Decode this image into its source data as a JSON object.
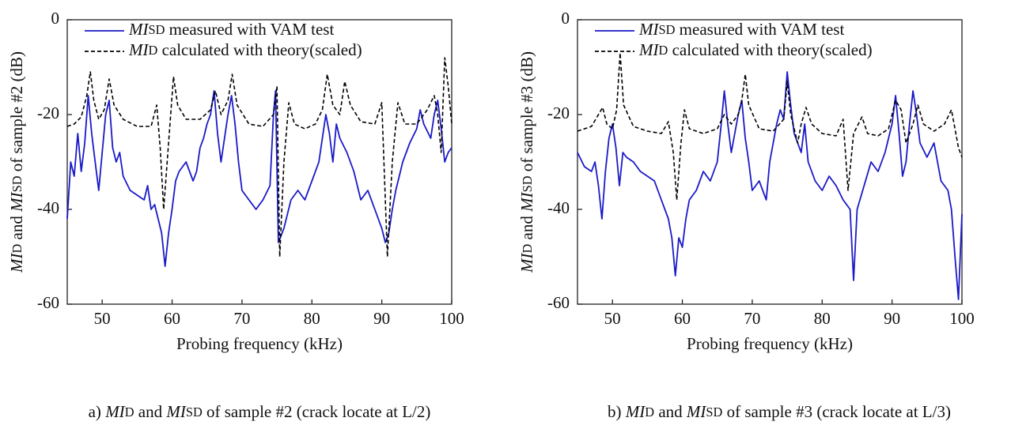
{
  "chart_data": [
    {
      "type": "line",
      "xlabel": "Probing frequency (kHz)",
      "ylabel": "MID and MISD of sample #2 (dB)",
      "caption": "a) MID and MISD of sample #2 (crack locate at L/2)",
      "xlim": [
        45,
        100
      ],
      "xticks": [
        50,
        60,
        70,
        80,
        90,
        100
      ],
      "ylim": [
        -60,
        0
      ],
      "yticks": [
        0,
        -20,
        -40,
        -60
      ],
      "legend": "upper left",
      "series": [
        {
          "name": "MISD measured with VAM test",
          "color": "#1a1ac8",
          "style": "solid",
          "x": [
            45,
            45.5,
            46,
            46.5,
            47,
            47.5,
            48,
            48.5,
            49,
            49.5,
            50,
            50.5,
            51,
            51.5,
            52,
            52.5,
            53,
            54,
            55,
            56,
            56.5,
            57,
            57.5,
            58,
            58.5,
            59,
            59.5,
            60,
            60.5,
            61,
            62,
            63,
            63.5,
            64,
            64.5,
            65,
            65.5,
            66,
            66.5,
            67,
            67.5,
            68,
            68.5,
            69,
            69.5,
            70,
            71,
            72,
            73,
            74,
            74.5,
            74.8,
            75.2,
            76,
            77,
            78,
            79,
            80,
            81,
            82,
            82.5,
            83,
            83.5,
            84,
            85,
            86,
            87,
            88,
            89,
            90,
            90.5,
            91,
            91.5,
            92,
            93,
            94,
            95,
            95.5,
            96,
            97,
            97.5,
            98,
            98.5,
            99,
            99.5,
            100
          ],
          "values": [
            -42,
            -30,
            -33,
            -24,
            -32,
            -26,
            -16,
            -24,
            -30,
            -36,
            -28,
            -20,
            -17,
            -27,
            -30,
            -28,
            -33,
            -36,
            -37,
            -38,
            -35,
            -40,
            -39,
            -42,
            -45,
            -52,
            -45,
            -40,
            -34,
            -32,
            -30,
            -34,
            -32,
            -27,
            -25,
            -22,
            -20,
            -15,
            -24,
            -30,
            -25,
            -20,
            -16,
            -22,
            -30,
            -36,
            -38,
            -40,
            -38,
            -35,
            -20,
            -15,
            -47,
            -44,
            -38,
            -36,
            -38,
            -34,
            -30,
            -20,
            -24,
            -30,
            -22,
            -25,
            -28,
            -32,
            -38,
            -36,
            -40,
            -44,
            -47,
            -45,
            -40,
            -36,
            -30,
            -26,
            -23,
            -19,
            -22,
            -25,
            -20,
            -17,
            -23,
            -30,
            -28,
            -27
          ]
        },
        {
          "name": "MID calculated with theory(scaled)",
          "color": "#000000",
          "style": "dashed",
          "x": [
            45,
            46,
            47,
            47.8,
            48.3,
            48.8,
            49.5,
            50.3,
            51,
            51.7,
            53,
            55,
            57,
            57.8,
            58.3,
            58.8,
            59.5,
            60.2,
            60.8,
            62,
            64,
            65.5,
            66.2,
            67,
            68,
            68.6,
            69.3,
            71,
            73,
            74.5,
            75,
            75.4,
            76,
            76.7,
            77.5,
            79,
            80.5,
            81.5,
            82.2,
            83,
            84,
            84.7,
            85.5,
            87,
            89,
            90,
            90.8,
            91.5,
            92.3,
            93.3,
            95,
            96.5,
            97.5,
            98,
            98.5,
            99,
            99.5,
            100
          ],
          "values": [
            -22.5,
            -22,
            -20.5,
            -16,
            -11,
            -17,
            -21,
            -19,
            -12.5,
            -18,
            -21,
            -22.5,
            -22.5,
            -18,
            -27,
            -40,
            -26,
            -12,
            -18,
            -21,
            -21,
            -19,
            -15,
            -20,
            -17,
            -11.5,
            -18,
            -22,
            -22.5,
            -20,
            -14,
            -50,
            -30,
            -17.5,
            -22,
            -23,
            -22,
            -19,
            -11.5,
            -18,
            -20,
            -13,
            -18,
            -21.5,
            -22,
            -17.5,
            -50,
            -30,
            -17.5,
            -22,
            -22,
            -19,
            -16,
            -20,
            -28,
            -8,
            -14,
            -22
          ]
        }
      ]
    },
    {
      "type": "line",
      "xlabel": "Probing frequency (kHz)",
      "ylabel": "MID and MISD of sample #3 (dB)",
      "caption": "b) MID and MISD of sample #3 (crack locate at L/3)",
      "xlim": [
        45,
        100
      ],
      "xticks": [
        50,
        60,
        70,
        80,
        90,
        100
      ],
      "ylim": [
        -60,
        0
      ],
      "yticks": [
        0,
        -20,
        -40,
        -60
      ],
      "legend": "upper left",
      "series": [
        {
          "name": "MISD measured with VAM test",
          "color": "#1a1ac8",
          "style": "solid",
          "x": [
            45,
            46,
            47,
            47.5,
            48,
            48.5,
            49,
            49.5,
            50,
            50.5,
            51,
            51.5,
            52,
            53,
            54,
            55,
            56,
            57,
            58,
            58.5,
            59,
            59.5,
            60,
            60.5,
            61,
            62,
            63,
            64,
            65,
            65.5,
            66,
            66.5,
            67,
            67.5,
            68,
            68.5,
            69,
            69.5,
            70,
            71,
            72,
            72.5,
            73,
            73.5,
            74,
            74.5,
            75,
            75.5,
            76,
            76.5,
            77,
            77.5,
            78,
            79,
            80,
            81,
            82,
            83,
            84,
            84.5,
            85,
            86,
            87,
            88,
            89,
            90,
            90.5,
            91,
            91.5,
            92,
            92.5,
            93,
            93.5,
            94,
            95,
            96,
            97,
            98,
            98.5,
            99,
            99.5,
            100
          ],
          "values": [
            -28,
            -31,
            -32,
            -30,
            -35,
            -42,
            -32,
            -25,
            -22,
            -27,
            -35,
            -28,
            -29,
            -30,
            -32,
            -33,
            -34,
            -38,
            -42,
            -46,
            -54,
            -46,
            -48,
            -42,
            -38,
            -36,
            -32,
            -34,
            -30,
            -23,
            -15,
            -22,
            -28,
            -24,
            -20,
            -17,
            -25,
            -30,
            -36,
            -34,
            -38,
            -30,
            -26,
            -22,
            -19,
            -21,
            -11,
            -18,
            -24,
            -26,
            -28,
            -22,
            -30,
            -34,
            -36,
            -33,
            -35,
            -38,
            -40,
            -55,
            -40,
            -35,
            -30,
            -32,
            -28,
            -22,
            -16,
            -24,
            -33,
            -30,
            -22,
            -15,
            -20,
            -26,
            -29,
            -26,
            -34,
            -36,
            -40,
            -50,
            -59,
            -41
          ]
        },
        {
          "name": "MID calculated with theory(scaled)",
          "color": "#000000",
          "style": "dashed",
          "x": [
            45,
            47,
            48,
            48.6,
            49.2,
            50,
            50.6,
            51.1,
            51.6,
            53,
            55,
            57,
            58,
            58.7,
            59.2,
            59.8,
            60.3,
            61,
            63,
            65,
            66,
            67,
            68,
            68.5,
            69,
            69.5,
            71,
            73,
            74.5,
            75,
            75.5,
            76.5,
            77,
            77.7,
            78.5,
            80,
            82,
            83,
            83.7,
            84.5,
            85.7,
            86.5,
            88,
            89.5,
            90.5,
            91.3,
            92,
            93,
            93.7,
            94.5,
            96,
            97.5,
            98.5,
            99,
            99.5,
            100
          ],
          "values": [
            -23.5,
            -22.5,
            -20,
            -18.5,
            -22,
            -23,
            -19,
            -7,
            -18,
            -22.5,
            -23.5,
            -24,
            -21.5,
            -28,
            -38,
            -26,
            -19,
            -23,
            -24,
            -23,
            -20,
            -22,
            -20,
            -17,
            -11.5,
            -18,
            -23,
            -23.5,
            -21,
            -13,
            -20,
            -26,
            -22,
            -18.5,
            -22,
            -24,
            -24.5,
            -21,
            -36,
            -24,
            -20.5,
            -24,
            -24.5,
            -23,
            -17,
            -19,
            -26,
            -22,
            -18,
            -22,
            -23.5,
            -22,
            -19,
            -23,
            -27,
            -29
          ]
        }
      ]
    }
  ]
}
